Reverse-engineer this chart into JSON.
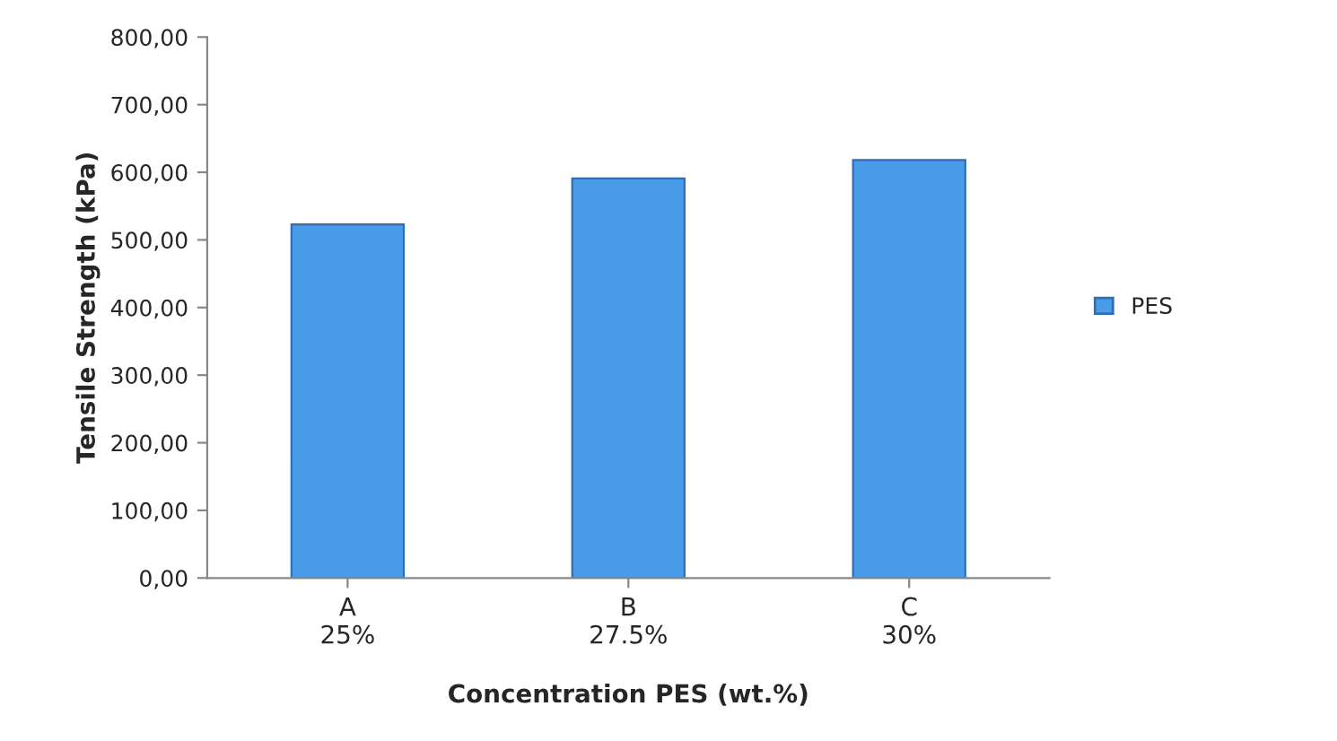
{
  "chart_data": {
    "type": "bar",
    "xlabel": "Concentration PES (wt.%)",
    "ylabel": "Tensile Strength (kPa)",
    "categories": [
      "A\n25%",
      "B\n27.5%",
      "C\n30%"
    ],
    "series": [
      {
        "name": "PES",
        "color": "#4a9be8",
        "values": [
          523,
          591,
          618
        ]
      }
    ],
    "ylim": [
      0,
      800
    ],
    "yticks": [
      {
        "value": 0,
        "label": "0,00"
      },
      {
        "value": 100,
        "label": "100,00"
      },
      {
        "value": 200,
        "label": "200,00"
      },
      {
        "value": 300,
        "label": "300,00"
      },
      {
        "value": 400,
        "label": "400,00"
      },
      {
        "value": 500,
        "label": "500,00"
      },
      {
        "value": 600,
        "label": "600,00"
      },
      {
        "value": 700,
        "label": "700,00"
      },
      {
        "value": 800,
        "label": "800,00"
      }
    ],
    "grid": false,
    "legend": "right"
  }
}
